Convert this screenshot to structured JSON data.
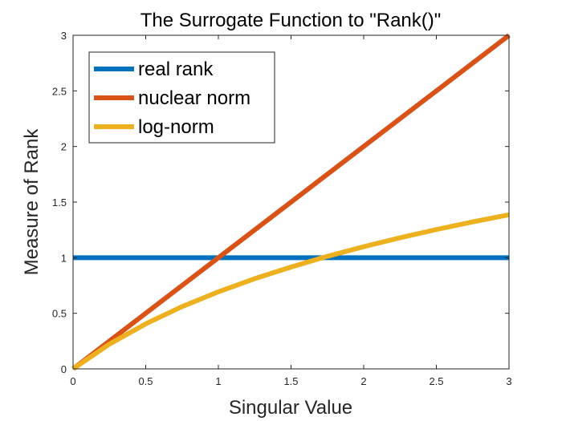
{
  "chart_data": {
    "type": "line",
    "title": "The Surrogate Function to \"Rank()\"",
    "xlabel": "Singular Value",
    "ylabel": "Measure of Rank",
    "xlim": [
      0,
      3
    ],
    "ylim": [
      0,
      3
    ],
    "xticks": [
      "0",
      "0.5",
      "1",
      "1.5",
      "2",
      "2.5",
      "3"
    ],
    "yticks": [
      "0",
      "0.5",
      "1",
      "1.5",
      "2",
      "2.5",
      "3"
    ],
    "grid": false,
    "legend_position": "top-left",
    "series": [
      {
        "name": "real rank",
        "color": "#0072BD",
        "x": [
          0,
          0.5,
          1,
          1.5,
          2,
          2.5,
          3
        ],
        "y": [
          1,
          1,
          1,
          1,
          1,
          1,
          1
        ]
      },
      {
        "name": "nuclear norm",
        "color": "#D95319",
        "x": [
          0,
          0.5,
          1,
          1.5,
          2,
          2.5,
          3
        ],
        "y": [
          0,
          0.5,
          1,
          1.5,
          2,
          2.5,
          3
        ]
      },
      {
        "name": "log-norm",
        "color": "#EDB120",
        "x": [
          0,
          0.25,
          0.5,
          0.75,
          1,
          1.25,
          1.5,
          1.75,
          2,
          2.25,
          2.5,
          2.75,
          3
        ],
        "y": [
          0,
          0.223,
          0.405,
          0.56,
          0.693,
          0.811,
          0.916,
          1.012,
          1.099,
          1.179,
          1.253,
          1.322,
          1.386
        ]
      }
    ]
  }
}
